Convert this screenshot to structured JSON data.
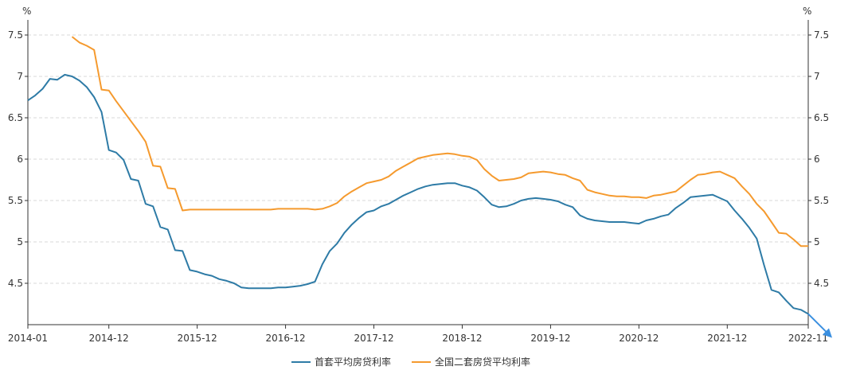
{
  "chart_data": {
    "type": "line",
    "title": "",
    "xlabel": "",
    "ylabel": "%",
    "ylabel_right": "%",
    "x_range": [
      "2014-01",
      "2022-11"
    ],
    "x_ticks": [
      "2014-01",
      "2014-12",
      "2015-12",
      "2016-12",
      "2017-12",
      "2018-12",
      "2019-12",
      "2020-12",
      "2021-12",
      "2022-11"
    ],
    "ylim": [
      4.05,
      7.6
    ],
    "y_ticks": [
      4.5,
      5,
      5.5,
      6,
      6.5,
      7,
      7.5
    ],
    "y_tick_labels": [
      "4.5",
      "5",
      "5.5",
      "6",
      "6.5",
      "7",
      "7.5"
    ],
    "grid": "horizontal dashed",
    "legend_position": "bottom-center",
    "series": [
      {
        "name": "首套平均房贷利率",
        "color": "#2e7ba6",
        "points": [
          [
            "2014-01",
            6.71
          ],
          [
            "2014-02",
            6.77
          ],
          [
            "2014-03",
            6.85
          ],
          [
            "2014-04",
            6.97
          ],
          [
            "2014-05",
            6.96
          ],
          [
            "2014-06",
            7.02
          ],
          [
            "2014-07",
            7.0
          ],
          [
            "2014-08",
            6.95
          ],
          [
            "2014-09",
            6.87
          ],
          [
            "2014-10",
            6.75
          ],
          [
            "2014-11",
            6.57
          ],
          [
            "2014-12",
            6.11
          ],
          [
            "2015-01",
            6.08
          ],
          [
            "2015-02",
            5.99
          ],
          [
            "2015-03",
            5.76
          ],
          [
            "2015-04",
            5.74
          ],
          [
            "2015-05",
            5.46
          ],
          [
            "2015-06",
            5.43
          ],
          [
            "2015-07",
            5.18
          ],
          [
            "2015-08",
            5.15
          ],
          [
            "2015-09",
            4.9
          ],
          [
            "2015-10",
            4.89
          ],
          [
            "2015-11",
            4.66
          ],
          [
            "2015-12",
            4.64
          ],
          [
            "2016-01",
            4.61
          ],
          [
            "2016-02",
            4.59
          ],
          [
            "2016-03",
            4.55
          ],
          [
            "2016-04",
            4.53
          ],
          [
            "2016-05",
            4.5
          ],
          [
            "2016-06",
            4.45
          ],
          [
            "2016-07",
            4.44
          ],
          [
            "2016-08",
            4.44
          ],
          [
            "2016-09",
            4.44
          ],
          [
            "2016-10",
            4.44
          ],
          [
            "2016-11",
            4.45
          ],
          [
            "2016-12",
            4.45
          ],
          [
            "2017-01",
            4.46
          ],
          [
            "2017-02",
            4.47
          ],
          [
            "2017-03",
            4.49
          ],
          [
            "2017-04",
            4.52
          ],
          [
            "2017-05",
            4.73
          ],
          [
            "2017-06",
            4.89
          ],
          [
            "2017-07",
            4.98
          ],
          [
            "2017-08",
            5.11
          ],
          [
            "2017-09",
            5.21
          ],
          [
            "2017-10",
            5.29
          ],
          [
            "2017-11",
            5.36
          ],
          [
            "2017-12",
            5.38
          ],
          [
            "2018-01",
            5.43
          ],
          [
            "2018-02",
            5.46
          ],
          [
            "2018-03",
            5.51
          ],
          [
            "2018-04",
            5.56
          ],
          [
            "2018-05",
            5.6
          ],
          [
            "2018-06",
            5.64
          ],
          [
            "2018-07",
            5.67
          ],
          [
            "2018-08",
            5.69
          ],
          [
            "2018-09",
            5.7
          ],
          [
            "2018-10",
            5.71
          ],
          [
            "2018-11",
            5.71
          ],
          [
            "2018-12",
            5.68
          ],
          [
            "2019-01",
            5.66
          ],
          [
            "2019-02",
            5.62
          ],
          [
            "2019-03",
            5.54
          ],
          [
            "2019-04",
            5.45
          ],
          [
            "2019-05",
            5.42
          ],
          [
            "2019-06",
            5.43
          ],
          [
            "2019-07",
            5.46
          ],
          [
            "2019-08",
            5.5
          ],
          [
            "2019-09",
            5.52
          ],
          [
            "2019-10",
            5.53
          ],
          [
            "2019-11",
            5.52
          ],
          [
            "2019-12",
            5.51
          ],
          [
            "2020-01",
            5.49
          ],
          [
            "2020-02",
            5.45
          ],
          [
            "2020-03",
            5.42
          ],
          [
            "2020-04",
            5.32
          ],
          [
            "2020-05",
            5.28
          ],
          [
            "2020-06",
            5.26
          ],
          [
            "2020-07",
            5.25
          ],
          [
            "2020-08",
            5.24
          ],
          [
            "2020-09",
            5.24
          ],
          [
            "2020-10",
            5.24
          ],
          [
            "2020-11",
            5.23
          ],
          [
            "2020-12",
            5.22
          ],
          [
            "2021-01",
            5.26
          ],
          [
            "2021-02",
            5.28
          ],
          [
            "2021-03",
            5.31
          ],
          [
            "2021-04",
            5.33
          ],
          [
            "2021-05",
            5.41
          ],
          [
            "2021-06",
            5.47
          ],
          [
            "2021-07",
            5.54
          ],
          [
            "2021-08",
            5.55
          ],
          [
            "2021-09",
            5.56
          ],
          [
            "2021-10",
            5.57
          ],
          [
            "2021-11",
            5.53
          ],
          [
            "2021-12",
            5.49
          ],
          [
            "2022-01",
            5.38
          ],
          [
            "2022-02",
            5.28
          ],
          [
            "2022-03",
            5.17
          ],
          [
            "2022-04",
            5.04
          ],
          [
            "2022-05",
            4.72
          ],
          [
            "2022-06",
            4.42
          ],
          [
            "2022-07",
            4.39
          ],
          [
            "2022-08",
            4.29
          ],
          [
            "2022-09",
            4.2
          ],
          [
            "2022-10",
            4.18
          ],
          [
            "2022-11",
            4.13
          ]
        ]
      },
      {
        "name": "全国二套房贷平均利率",
        "color": "#f59a2e",
        "points": [
          [
            "2014-07",
            7.48
          ],
          [
            "2014-08",
            7.41
          ],
          [
            "2014-09",
            7.37
          ],
          [
            "2014-10",
            7.32
          ],
          [
            "2014-11",
            6.84
          ],
          [
            "2014-12",
            6.83
          ],
          [
            "2015-01",
            6.7
          ],
          [
            "2015-02",
            6.58
          ],
          [
            "2015-03",
            6.46
          ],
          [
            "2015-04",
            6.34
          ],
          [
            "2015-05",
            6.21
          ],
          [
            "2015-06",
            5.92
          ],
          [
            "2015-07",
            5.91
          ],
          [
            "2015-08",
            5.65
          ],
          [
            "2015-09",
            5.64
          ],
          [
            "2015-10",
            5.38
          ],
          [
            "2015-11",
            5.39
          ],
          [
            "2015-12",
            5.39
          ],
          [
            "2016-01",
            5.39
          ],
          [
            "2016-02",
            5.39
          ],
          [
            "2016-03",
            5.39
          ],
          [
            "2016-04",
            5.39
          ],
          [
            "2016-05",
            5.39
          ],
          [
            "2016-06",
            5.39
          ],
          [
            "2016-07",
            5.39
          ],
          [
            "2016-08",
            5.39
          ],
          [
            "2016-09",
            5.39
          ],
          [
            "2016-10",
            5.39
          ],
          [
            "2016-11",
            5.4
          ],
          [
            "2016-12",
            5.4
          ],
          [
            "2017-01",
            5.4
          ],
          [
            "2017-02",
            5.4
          ],
          [
            "2017-03",
            5.4
          ],
          [
            "2017-04",
            5.39
          ],
          [
            "2017-05",
            5.4
          ],
          [
            "2017-06",
            5.43
          ],
          [
            "2017-07",
            5.47
          ],
          [
            "2017-08",
            5.55
          ],
          [
            "2017-09",
            5.61
          ],
          [
            "2017-10",
            5.66
          ],
          [
            "2017-11",
            5.71
          ],
          [
            "2017-12",
            5.73
          ],
          [
            "2018-01",
            5.75
          ],
          [
            "2018-02",
            5.79
          ],
          [
            "2018-03",
            5.86
          ],
          [
            "2018-04",
            5.91
          ],
          [
            "2018-05",
            5.96
          ],
          [
            "2018-06",
            6.01
          ],
          [
            "2018-07",
            6.03
          ],
          [
            "2018-08",
            6.05
          ],
          [
            "2018-09",
            6.06
          ],
          [
            "2018-10",
            6.07
          ],
          [
            "2018-11",
            6.06
          ],
          [
            "2018-12",
            6.04
          ],
          [
            "2019-01",
            6.03
          ],
          [
            "2019-02",
            5.99
          ],
          [
            "2019-03",
            5.88
          ],
          [
            "2019-04",
            5.8
          ],
          [
            "2019-05",
            5.74
          ],
          [
            "2019-06",
            5.75
          ],
          [
            "2019-07",
            5.76
          ],
          [
            "2019-08",
            5.78
          ],
          [
            "2019-09",
            5.83
          ],
          [
            "2019-10",
            5.84
          ],
          [
            "2019-11",
            5.85
          ],
          [
            "2019-12",
            5.84
          ],
          [
            "2020-01",
            5.82
          ],
          [
            "2020-02",
            5.81
          ],
          [
            "2020-03",
            5.77
          ],
          [
            "2020-04",
            5.74
          ],
          [
            "2020-05",
            5.63
          ],
          [
            "2020-06",
            5.6
          ],
          [
            "2020-07",
            5.58
          ],
          [
            "2020-08",
            5.56
          ],
          [
            "2020-09",
            5.55
          ],
          [
            "2020-10",
            5.55
          ],
          [
            "2020-11",
            5.54
          ],
          [
            "2020-12",
            5.54
          ],
          [
            "2021-01",
            5.53
          ],
          [
            "2021-02",
            5.56
          ],
          [
            "2021-03",
            5.57
          ],
          [
            "2021-04",
            5.59
          ],
          [
            "2021-05",
            5.61
          ],
          [
            "2021-06",
            5.68
          ],
          [
            "2021-07",
            5.75
          ],
          [
            "2021-08",
            5.81
          ],
          [
            "2021-09",
            5.82
          ],
          [
            "2021-10",
            5.84
          ],
          [
            "2021-11",
            5.85
          ],
          [
            "2021-12",
            5.81
          ],
          [
            "2022-01",
            5.77
          ],
          [
            "2022-02",
            5.67
          ],
          [
            "2022-03",
            5.58
          ],
          [
            "2022-04",
            5.46
          ],
          [
            "2022-05",
            5.37
          ],
          [
            "2022-06",
            5.24
          ],
          [
            "2022-07",
            5.11
          ],
          [
            "2022-08",
            5.1
          ],
          [
            "2022-09",
            5.03
          ],
          [
            "2022-10",
            4.95
          ],
          [
            "2022-11",
            4.95
          ]
        ]
      }
    ]
  },
  "colors": {
    "axis": "#333333",
    "grid": "#d8d8d8",
    "tick_text": "#333333",
    "marker": "#3a8fe0"
  }
}
